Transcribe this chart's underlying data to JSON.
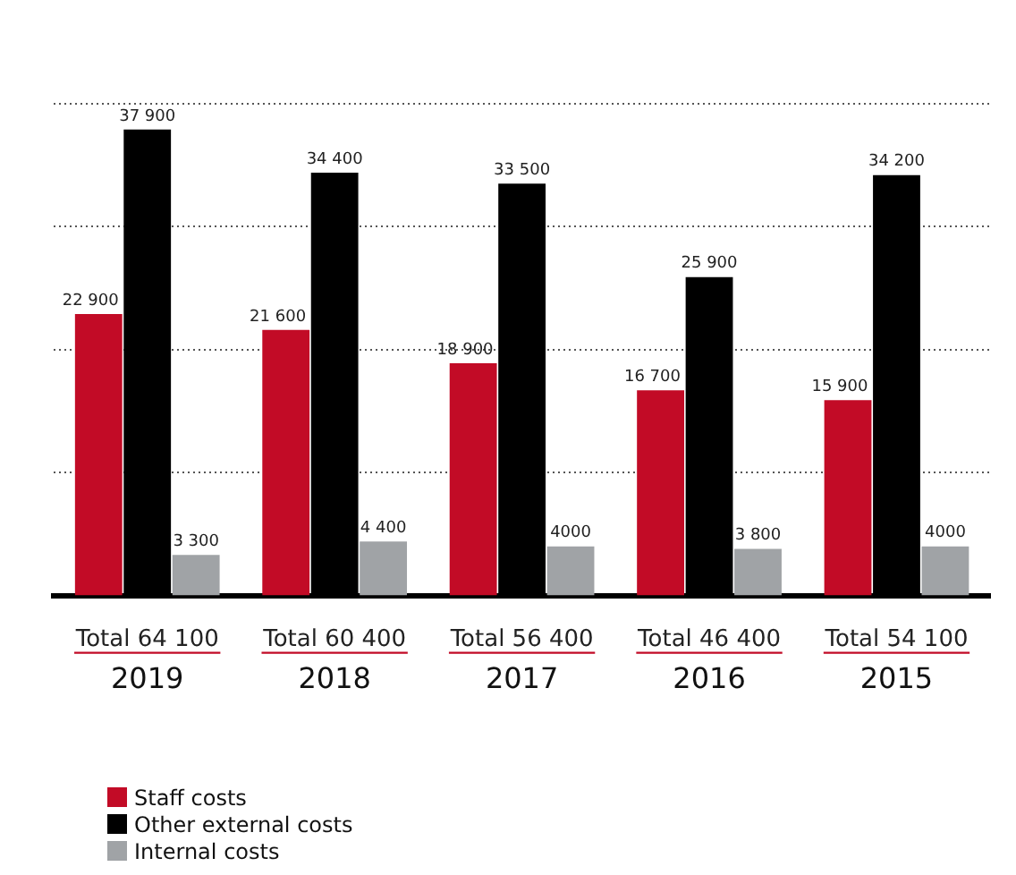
{
  "chart_data": {
    "type": "bar",
    "categories": [
      "2019",
      "2018",
      "2017",
      "2016",
      "2015"
    ],
    "series": [
      {
        "name": "Staff costs",
        "color": "#c20b26",
        "values": [
          22900,
          21600,
          18900,
          16700,
          15900
        ],
        "value_labels": [
          "22 900",
          "21 600",
          "18 900",
          "16 700",
          "15 900"
        ]
      },
      {
        "name": "Other external costs",
        "color": "#000000",
        "values": [
          37900,
          34400,
          33500,
          25900,
          34200
        ],
        "value_labels": [
          "37 900",
          "34 400",
          "33 500",
          "25 900",
          "34 200"
        ]
      },
      {
        "name": "Internal costs",
        "color": "#a0a3a6",
        "values": [
          3300,
          4400,
          4000,
          3800,
          4000
        ],
        "value_labels": [
          "3 300",
          "4 400",
          "4000",
          "3 800",
          "4000"
        ]
      }
    ],
    "totals": [
      "Total 64 100",
      "Total 60 400",
      "Total 56 400",
      "Total 46 400",
      "Total 54 100"
    ],
    "ylim": [
      0,
      40000
    ],
    "yticks": [
      {
        "value": 10000,
        "label": null
      },
      {
        "value": 20000,
        "label": null
      },
      {
        "value": 30000,
        "label": null
      },
      {
        "value": 40000,
        "label": null
      }
    ],
    "tick_labels": "x",
    "grid": "y",
    "legend": "bottom left"
  }
}
